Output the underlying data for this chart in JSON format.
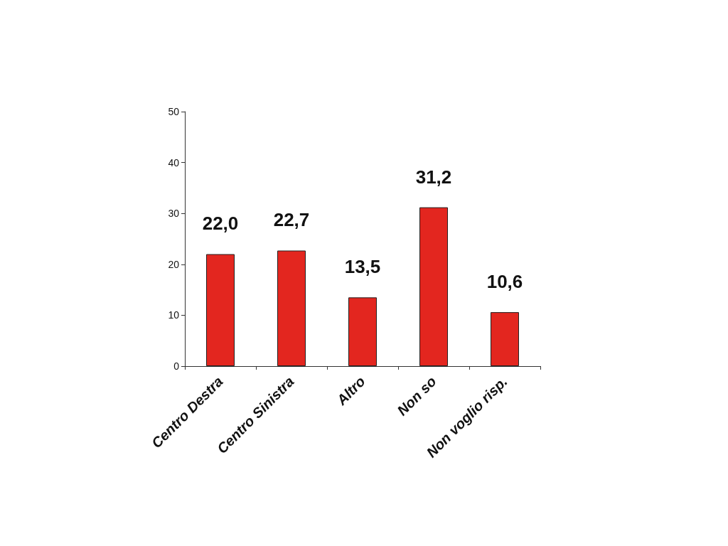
{
  "chart_data": {
    "type": "bar",
    "categories": [
      "Centro Destra",
      "Centro Sinistra",
      "Altro",
      "Non so",
      "Non voglio risp."
    ],
    "values": [
      22.0,
      22.7,
      13.5,
      31.2,
      10.6
    ],
    "value_labels": [
      "22,0",
      "22,7",
      "13,5",
      "31,2",
      "10,6"
    ],
    "color": "#e3261f",
    "ylim": [
      0,
      50
    ],
    "yticks": [
      0,
      10,
      20,
      30,
      40,
      50
    ],
    "grid": false
  }
}
